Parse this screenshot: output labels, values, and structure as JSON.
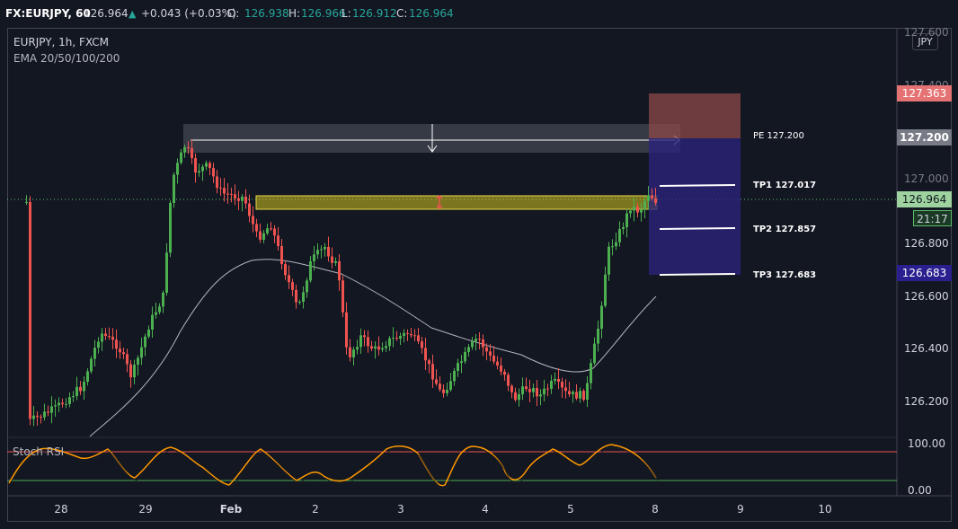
{
  "topbar": {
    "symbol": "FX:EURJPY, 60",
    "last": "126.964",
    "change_icon": "triangle-up-icon",
    "change_arrow": "▲",
    "change": "+0.043 (+0.03%)",
    "o_label": "O:",
    "o_value": "126.938",
    "h_label": "H:",
    "h_value": "126.966",
    "l_label": "L:",
    "l_value": "126.912",
    "c_label": "C:",
    "c_value": "126.964"
  },
  "legend": {
    "series": "EURJPY, 1h, FXCM",
    "indicator": "EMA 20/50/100/200",
    "oscillator": "Stoch RSI"
  },
  "currency_button": "JPY",
  "price_axis": {
    "labels": [
      "127.600",
      "127.400",
      "127.000",
      "126.800",
      "126.600",
      "126.400",
      "126.200"
    ],
    "stoch_labels": [
      "100.00",
      "0.00"
    ]
  },
  "price_tags": {
    "stop": "127.363",
    "entry": "127.200",
    "current": "126.964",
    "countdown": "21:17",
    "target": "126.683"
  },
  "annotations": {
    "pe": "PE 127.200",
    "tp1": "TP1 127.017",
    "tp2": "TP2 127.857",
    "tp3": "TP3 127.683"
  },
  "time_axis": {
    "labels": [
      "28",
      "29",
      "Feb",
      "2",
      "3",
      "4",
      "5",
      "8",
      "9",
      "10"
    ]
  },
  "colors": {
    "background": "#131722",
    "bull": "#4caf50",
    "bear": "#ef5350",
    "stop_tag": "#e57373",
    "entry_tag": "#787b86",
    "current_tag": "#5ebd6a",
    "target_tag": "#2a1f8f",
    "stoch": "#ff9800"
  }
}
